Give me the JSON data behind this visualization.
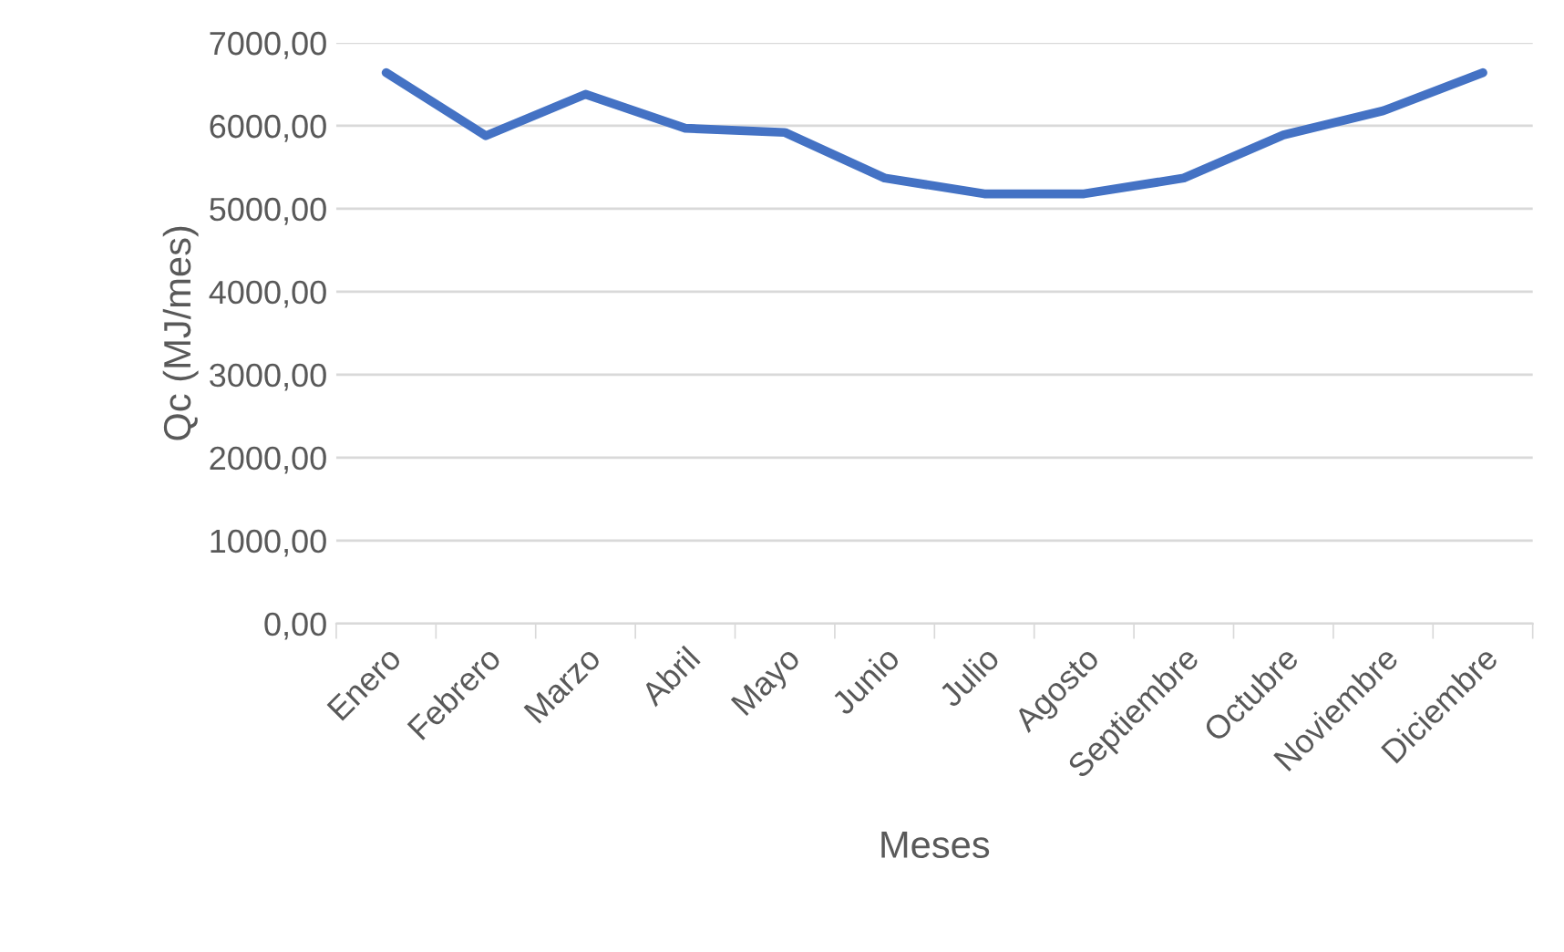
{
  "chart_data": {
    "type": "line",
    "xlabel": "Meses",
    "ylabel": "Qc (MJ/mes)",
    "categories": [
      "Enero",
      "Febrero",
      "Marzo",
      "Abril",
      "Mayo",
      "Junio",
      "Julio",
      "Agosto",
      "Septiembre",
      "Octubre",
      "Noviembre",
      "Diciembre"
    ],
    "series": [
      {
        "color": "#4472c4",
        "values": [
          6640,
          5880,
          6380,
          5970,
          5920,
          5370,
          5180,
          5180,
          5370,
          5890,
          6180,
          6640
        ]
      }
    ],
    "ylim": [
      0,
      7000
    ],
    "yticks": [
      {
        "value": 0,
        "label": "0,00"
      },
      {
        "value": 1000,
        "label": "1000,00"
      },
      {
        "value": 2000,
        "label": "2000,00"
      },
      {
        "value": 3000,
        "label": "3000,00"
      },
      {
        "value": 4000,
        "label": "4000,00"
      },
      {
        "value": 5000,
        "label": "5000,00"
      },
      {
        "value": 6000,
        "label": "6000,00"
      },
      {
        "value": 7000,
        "label": "7000,00"
      }
    ],
    "grid": "y",
    "marker": "none",
    "line_style": "solid",
    "legend": false
  }
}
